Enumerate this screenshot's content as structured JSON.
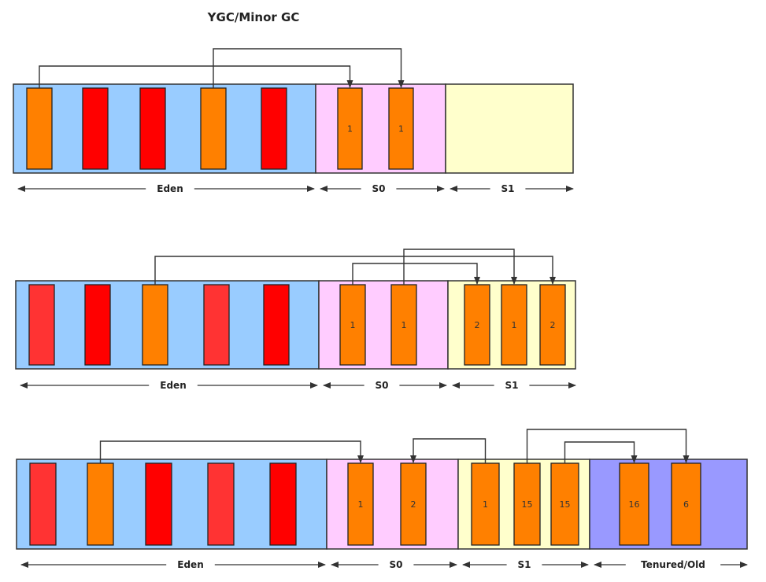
{
  "title": "YGC/Minor GC",
  "colors": {
    "eden": "#99ccff",
    "s0": "#ffccff",
    "s1": "#ffffcc",
    "old": "#9999ff",
    "live": "#ff8000",
    "dead": "#ff0000",
    "dead_light": "#ff3333",
    "line": "#333333"
  },
  "rows": [
    {
      "region_labels": [
        "Eden",
        "S0",
        "S1"
      ],
      "objects": [
        {
          "region": "eden",
          "state": "live",
          "age": ""
        },
        {
          "region": "eden",
          "state": "dead",
          "age": ""
        },
        {
          "region": "eden",
          "state": "dead",
          "age": ""
        },
        {
          "region": "eden",
          "state": "live",
          "age": ""
        },
        {
          "region": "eden",
          "state": "dead",
          "age": ""
        },
        {
          "region": "s0",
          "state": "live",
          "age": "1"
        },
        {
          "region": "s0",
          "state": "live",
          "age": "1"
        }
      ]
    },
    {
      "region_labels": [
        "Eden",
        "S0",
        "S1"
      ],
      "objects": [
        {
          "region": "eden",
          "state": "dead",
          "age": ""
        },
        {
          "region": "eden",
          "state": "dead",
          "age": ""
        },
        {
          "region": "eden",
          "state": "live",
          "age": ""
        },
        {
          "region": "eden",
          "state": "dead",
          "age": ""
        },
        {
          "region": "eden",
          "state": "dead",
          "age": ""
        },
        {
          "region": "s0",
          "state": "live",
          "age": "1"
        },
        {
          "region": "s0",
          "state": "live",
          "age": "1"
        },
        {
          "region": "s1",
          "state": "live",
          "age": "2"
        },
        {
          "region": "s1",
          "state": "live",
          "age": "1"
        },
        {
          "region": "s1",
          "state": "live",
          "age": "2"
        }
      ]
    },
    {
      "region_labels": [
        "Eden",
        "S0",
        "S1",
        "Tenured/Old"
      ],
      "objects": [
        {
          "region": "eden",
          "state": "dead",
          "age": ""
        },
        {
          "region": "eden",
          "state": "live",
          "age": ""
        },
        {
          "region": "eden",
          "state": "dead",
          "age": ""
        },
        {
          "region": "eden",
          "state": "dead",
          "age": ""
        },
        {
          "region": "eden",
          "state": "dead",
          "age": ""
        },
        {
          "region": "s0",
          "state": "live",
          "age": "1"
        },
        {
          "region": "s0",
          "state": "live",
          "age": "2"
        },
        {
          "region": "s1",
          "state": "live",
          "age": "1"
        },
        {
          "region": "s1",
          "state": "live",
          "age": "15"
        },
        {
          "region": "s1",
          "state": "live",
          "age": "15"
        },
        {
          "region": "old",
          "state": "live",
          "age": "16"
        },
        {
          "region": "old",
          "state": "live",
          "age": "6"
        }
      ]
    }
  ]
}
